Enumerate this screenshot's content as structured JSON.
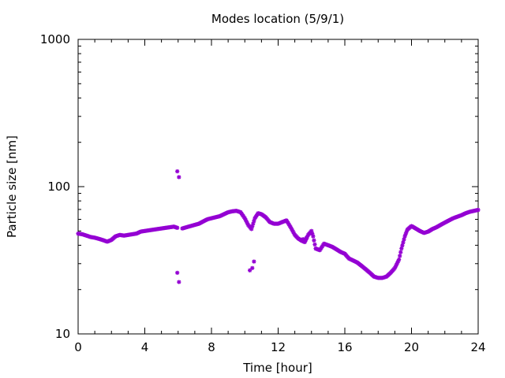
{
  "chart_data": {
    "type": "scatter",
    "title": "Modes location (5/9/1)",
    "xlabel": "Time [hour]",
    "ylabel": "Particle size [nm]",
    "xlim": [
      0,
      24
    ],
    "ylim": [
      10,
      1000
    ],
    "yscale": "log",
    "grid": false,
    "legend": "none",
    "marker_color": "#9400d3",
    "x_ticks": [
      0,
      4,
      8,
      12,
      16,
      20,
      24
    ],
    "x_tick_labels": [
      "0",
      "4",
      "8",
      "12",
      "16",
      "20",
      "24"
    ],
    "y_ticks": [
      10,
      100,
      1000
    ],
    "y_tick_labels": [
      "10",
      "100",
      "1000"
    ],
    "main_curve": [
      [
        0.0,
        48
      ],
      [
        0.25,
        47.5
      ],
      [
        0.5,
        46.5
      ],
      [
        0.75,
        45.5
      ],
      [
        1.0,
        45
      ],
      [
        1.25,
        44.2
      ],
      [
        1.5,
        43.3
      ],
      [
        1.75,
        42.3
      ],
      [
        2.0,
        43.5
      ],
      [
        2.25,
        46
      ],
      [
        2.5,
        47
      ],
      [
        2.75,
        46.5
      ],
      [
        3.0,
        47
      ],
      [
        3.25,
        47.5
      ],
      [
        3.5,
        48
      ],
      [
        3.75,
        49.5
      ],
      [
        4.0,
        50
      ],
      [
        4.25,
        50.5
      ],
      [
        4.5,
        51
      ],
      [
        4.75,
        51.5
      ],
      [
        5.0,
        52
      ],
      [
        5.25,
        52.5
      ],
      [
        5.5,
        53
      ],
      [
        5.75,
        53.5
      ],
      [
        5.95,
        52.5
      ],
      [
        6.25,
        52
      ],
      [
        6.5,
        53
      ],
      [
        6.75,
        54
      ],
      [
        7.0,
        55
      ],
      [
        7.25,
        56
      ],
      [
        7.5,
        58
      ],
      [
        7.75,
        60
      ],
      [
        8.0,
        61
      ],
      [
        8.25,
        62
      ],
      [
        8.5,
        63
      ],
      [
        8.75,
        65
      ],
      [
        9.0,
        67
      ],
      [
        9.25,
        68
      ],
      [
        9.5,
        68.5
      ],
      [
        9.75,
        67
      ],
      [
        10.0,
        61
      ],
      [
        10.2,
        55
      ],
      [
        10.4,
        51.5
      ],
      [
        10.6,
        61
      ],
      [
        10.8,
        66
      ],
      [
        11.0,
        65
      ],
      [
        11.25,
        62
      ],
      [
        11.5,
        57.5
      ],
      [
        11.75,
        56
      ],
      [
        12.0,
        56
      ],
      [
        12.25,
        57.5
      ],
      [
        12.5,
        59
      ],
      [
        12.75,
        53
      ],
      [
        13.0,
        47
      ],
      [
        13.2,
        44.5
      ],
      [
        13.4,
        43
      ],
      [
        13.6,
        42
      ],
      [
        13.8,
        47
      ],
      [
        14.0,
        50
      ],
      [
        14.1,
        46
      ],
      [
        14.25,
        38
      ],
      [
        14.5,
        37
      ],
      [
        14.75,
        41
      ],
      [
        15.0,
        40
      ],
      [
        15.25,
        39
      ],
      [
        15.5,
        37.5
      ],
      [
        15.75,
        36
      ],
      [
        16.0,
        35
      ],
      [
        16.25,
        32.5
      ],
      [
        16.5,
        31.5
      ],
      [
        16.75,
        30.5
      ],
      [
        17.0,
        29
      ],
      [
        17.25,
        27.5
      ],
      [
        17.5,
        26
      ],
      [
        17.75,
        24.5
      ],
      [
        18.0,
        24
      ],
      [
        18.25,
        24
      ],
      [
        18.5,
        24.5
      ],
      [
        18.75,
        26
      ],
      [
        19.0,
        28
      ],
      [
        19.25,
        32
      ],
      [
        19.4,
        38
      ],
      [
        19.6,
        46
      ],
      [
        19.75,
        51
      ],
      [
        20.0,
        54
      ],
      [
        20.25,
        52
      ],
      [
        20.5,
        50
      ],
      [
        20.75,
        48.5
      ],
      [
        21.0,
        49.5
      ],
      [
        21.25,
        51.5
      ],
      [
        21.5,
        53
      ],
      [
        21.75,
        55
      ],
      [
        22.0,
        57
      ],
      [
        22.25,
        59
      ],
      [
        22.5,
        61
      ],
      [
        22.75,
        62.5
      ],
      [
        23.0,
        64
      ],
      [
        23.25,
        66
      ],
      [
        23.5,
        67.5
      ],
      [
        23.75,
        68.5
      ],
      [
        24.0,
        69.5
      ]
    ],
    "outliers": [
      [
        5.95,
        127
      ],
      [
        6.05,
        116
      ],
      [
        5.95,
        26
      ],
      [
        6.05,
        22.5
      ],
      [
        10.3,
        27
      ],
      [
        10.45,
        28
      ],
      [
        10.55,
        31
      ],
      [
        13.5,
        44
      ],
      [
        13.7,
        45
      ]
    ]
  }
}
